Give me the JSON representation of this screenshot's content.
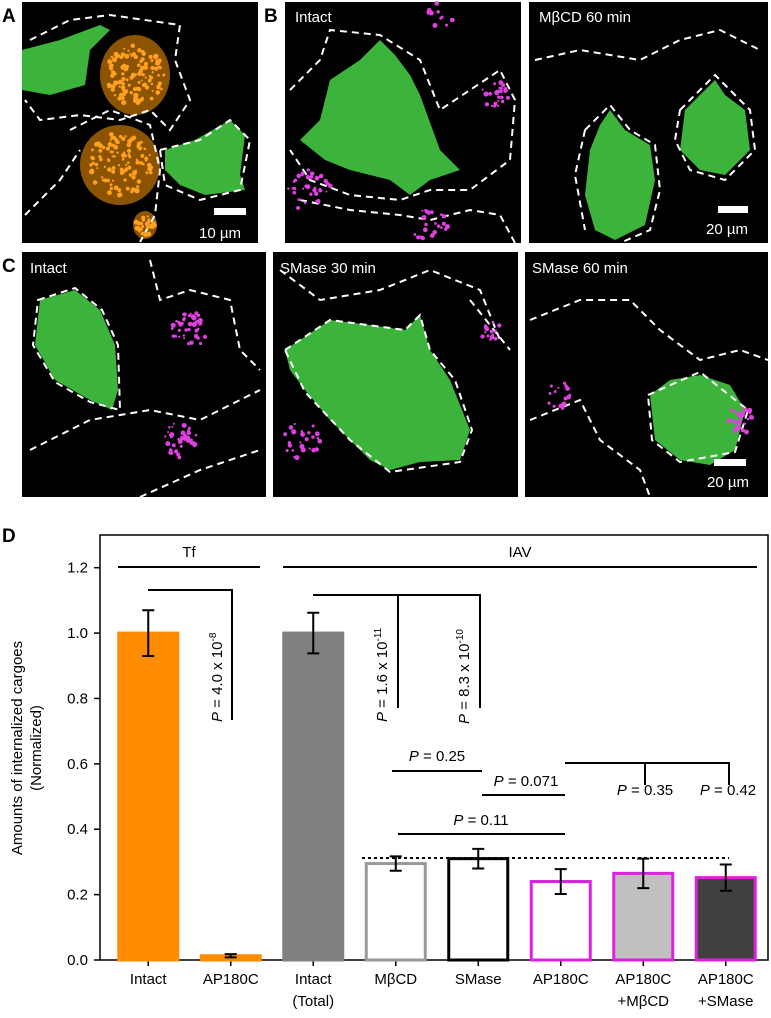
{
  "panels": {
    "A": {
      "label": "A",
      "scale_bar": "10 µm"
    },
    "B": {
      "label": "B",
      "images": [
        "Intact",
        "MβCD 60 min"
      ],
      "scale_bar": "20 µm"
    },
    "C": {
      "label": "C",
      "images": [
        "Intact",
        "SMase 30 min",
        "SMase 60 min"
      ],
      "scale_bar": "20 µm"
    }
  },
  "chart_data": {
    "panel_label": "D",
    "type": "bar",
    "ylabel": [
      "Amounts of internalized cargoes",
      "(Normalized)"
    ],
    "categories": [
      [
        "Intact"
      ],
      [
        "AP180C"
      ],
      [
        "Intact",
        "(Total)"
      ],
      [
        "MβCD"
      ],
      [
        "SMase"
      ],
      [
        "AP180C"
      ],
      [
        "AP180C",
        "+MβCD"
      ],
      [
        "AP180C",
        "+SMase"
      ]
    ],
    "values": [
      1.0,
      0.013,
      1.0,
      0.295,
      0.31,
      0.24,
      0.265,
      0.252
    ],
    "errors": [
      0.07,
      0.005,
      0.062,
      0.022,
      0.03,
      0.038,
      0.045,
      0.04
    ],
    "fills": [
      "#ff8c00",
      "#ff8c00",
      "#808080",
      "#ffffff",
      "#ffffff",
      "#ffffff",
      "#c0c0c0",
      "#404040"
    ],
    "edges": [
      "#ff8c00",
      "#ff8c00",
      "#808080",
      "#999999",
      "#000000",
      "#e020e0",
      "#e020e0",
      "#e020e0"
    ],
    "ylim": [
      0,
      1.3
    ],
    "yticks": [
      {
        "value": 0,
        "label": "0.0"
      },
      0.2,
      0.4,
      0.6,
      0.8,
      {
        "value": 1,
        "label": "1.0"
      },
      1.2
    ],
    "groups": [
      "Tf",
      "IAV"
    ],
    "annotations": [
      {
        "italic": "P",
        "text": " = 4.0  x 10",
        "sup": "-8"
      },
      {
        "italic": "P",
        "text": " = 1.6  x 10",
        "sup": "-11"
      },
      {
        "italic": "P",
        "text": " = 8.3  x 10",
        "sup": "-10"
      },
      {
        "italic": "P",
        "text": " = 0.25"
      },
      {
        "italic": "P",
        "text": " = 0.071"
      },
      {
        "italic": "P",
        "text": " = 0.11"
      },
      {
        "italic": "P",
        "text": " = 0.35"
      },
      {
        "italic": "P",
        "text": " = 0.42"
      }
    ]
  }
}
